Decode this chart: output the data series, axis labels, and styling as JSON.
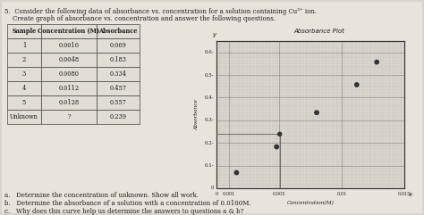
{
  "title_line1": "5.  Consider the following data of absorbance vs. concentration for a solution containing Cu²⁺ ion.",
  "title_line2": "    Create graph of absorbance vs. concentration and answer the following questions.",
  "table_headers": [
    "Sample",
    "Concentration (M)",
    "Absorbance"
  ],
  "table_rows": [
    [
      "1",
      "0.0016",
      "0.069"
    ],
    [
      "2",
      "0.0048",
      "0.183"
    ],
    [
      "3",
      "0.0080",
      "0.334"
    ],
    [
      "4",
      "0.0112",
      "0.457"
    ],
    [
      "5",
      "0.0128",
      "0.557"
    ],
    [
      "Unknown",
      "?",
      "0.239"
    ]
  ],
  "concentration": [
    0.0016,
    0.0048,
    0.008,
    0.0112,
    0.0128
  ],
  "absorbance": [
    0.069,
    0.183,
    0.334,
    0.457,
    0.557
  ],
  "unknown_absorbance": 0.239,
  "graph_title": "Absorbance Plot",
  "xlim": [
    0,
    0.015
  ],
  "ylim": [
    0,
    0.65
  ],
  "ytick_labels": [
    "0",
    "0.1-",
    "0.2-",
    "0.3-",
    "0.4-",
    "0.5-",
    "0.6-"
  ],
  "xtick_labels": [
    "0",
    "0.001",
    "0.005",
    "0.01",
    "0.015"
  ],
  "xlabel_handwritten": "Concentration (M)",
  "ylabel_handwritten": "Absorbance",
  "questions": [
    "a.   Determine the concentration of unknown. Show all work.",
    "b.   Determine the absorbance of a solution with a concentration of 0.0100M.",
    "c.   Why does this curve help us determine the answers to questions a & b?"
  ],
  "bg_color": "#d8d4cc",
  "paper_color": "#e8e4dc",
  "graph_bg": "#dddad2",
  "grid_color": "#b0ada5",
  "text_color": "#1a1a1a",
  "point_color": "#333333"
}
